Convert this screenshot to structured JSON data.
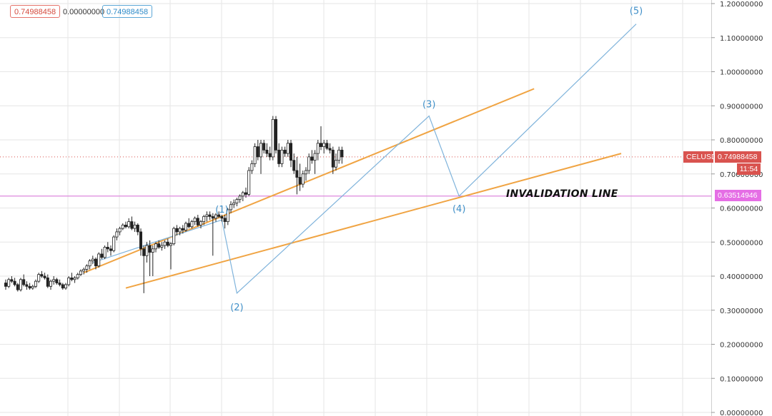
{
  "chart_data": {
    "type": "candlestick",
    "symbol": "CELUSD",
    "header": {
      "open_value": "0.74988458",
      "change_value": "0.00000000",
      "last_value": "0.74988458"
    },
    "last_price": 0.74988458,
    "last_price_label": "0.74988458",
    "countdown": "11:54",
    "invalidation_price": 0.63514946,
    "invalidation_price_label": "0.63514946",
    "invalidation_text": "INVALIDATION LINE",
    "ylim": [
      0,
      1.2
    ],
    "y_ticks": [
      0,
      0.1,
      0.2,
      0.3,
      0.4,
      0.5,
      0.6,
      0.7,
      0.8,
      0.9,
      1.0,
      1.1,
      1.2
    ],
    "y_tick_labels": [
      "0.00000000",
      "0.10000000",
      "0.20000000",
      "0.30000000",
      "0.40000000",
      "0.50000000",
      "0.60000000",
      "0.70000000",
      "0.80000000",
      "0.90000000",
      "1.00000000",
      "1.10000000",
      "1.20000000"
    ],
    "bars_total": 180,
    "candles": [
      [
        0.38,
        0.39,
        0.36,
        0.37
      ],
      [
        0.37,
        0.395,
        0.365,
        0.39
      ],
      [
        0.39,
        0.4,
        0.38,
        0.385
      ],
      [
        0.385,
        0.395,
        0.37,
        0.375
      ],
      [
        0.375,
        0.38,
        0.355,
        0.36
      ],
      [
        0.36,
        0.395,
        0.355,
        0.39
      ],
      [
        0.39,
        0.405,
        0.37,
        0.375
      ],
      [
        0.375,
        0.385,
        0.36,
        0.37
      ],
      [
        0.37,
        0.38,
        0.36,
        0.365
      ],
      [
        0.365,
        0.375,
        0.36,
        0.37
      ],
      [
        0.37,
        0.39,
        0.365,
        0.385
      ],
      [
        0.385,
        0.41,
        0.38,
        0.405
      ],
      [
        0.405,
        0.415,
        0.395,
        0.4
      ],
      [
        0.4,
        0.41,
        0.39,
        0.395
      ],
      [
        0.395,
        0.405,
        0.365,
        0.37
      ],
      [
        0.37,
        0.39,
        0.36,
        0.385
      ],
      [
        0.385,
        0.4,
        0.375,
        0.39
      ],
      [
        0.39,
        0.395,
        0.375,
        0.38
      ],
      [
        0.38,
        0.39,
        0.37,
        0.375
      ],
      [
        0.375,
        0.38,
        0.36,
        0.365
      ],
      [
        0.365,
        0.38,
        0.36,
        0.375
      ],
      [
        0.375,
        0.4,
        0.37,
        0.395
      ],
      [
        0.395,
        0.41,
        0.385,
        0.39
      ],
      [
        0.39,
        0.4,
        0.38,
        0.395
      ],
      [
        0.395,
        0.41,
        0.39,
        0.405
      ],
      [
        0.405,
        0.42,
        0.4,
        0.415
      ],
      [
        0.415,
        0.425,
        0.405,
        0.42
      ],
      [
        0.42,
        0.435,
        0.41,
        0.43
      ],
      [
        0.43,
        0.45,
        0.42,
        0.445
      ],
      [
        0.445,
        0.46,
        0.435,
        0.45
      ],
      [
        0.45,
        0.455,
        0.42,
        0.43
      ],
      [
        0.43,
        0.47,
        0.425,
        0.465
      ],
      [
        0.465,
        0.48,
        0.45,
        0.455
      ],
      [
        0.455,
        0.49,
        0.45,
        0.485
      ],
      [
        0.485,
        0.5,
        0.47,
        0.48
      ],
      [
        0.48,
        0.49,
        0.46,
        0.475
      ],
      [
        0.475,
        0.52,
        0.47,
        0.515
      ],
      [
        0.515,
        0.54,
        0.505,
        0.53
      ],
      [
        0.53,
        0.545,
        0.52,
        0.54
      ],
      [
        0.54,
        0.555,
        0.535,
        0.55
      ],
      [
        0.55,
        0.56,
        0.54,
        0.545
      ],
      [
        0.545,
        0.57,
        0.54,
        0.56
      ],
      [
        0.56,
        0.575,
        0.535,
        0.54
      ],
      [
        0.54,
        0.56,
        0.53,
        0.55
      ],
      [
        0.55,
        0.555,
        0.52,
        0.53
      ],
      [
        0.53,
        0.54,
        0.46,
        0.48
      ],
      [
        0.48,
        0.49,
        0.35,
        0.46
      ],
      [
        0.46,
        0.5,
        0.44,
        0.49
      ],
      [
        0.49,
        0.505,
        0.4,
        0.47
      ],
      [
        0.47,
        0.49,
        0.4,
        0.48
      ],
      [
        0.48,
        0.5,
        0.47,
        0.495
      ],
      [
        0.495,
        0.505,
        0.48,
        0.485
      ],
      [
        0.485,
        0.5,
        0.475,
        0.49
      ],
      [
        0.49,
        0.505,
        0.48,
        0.5
      ],
      [
        0.5,
        0.51,
        0.485,
        0.49
      ],
      [
        0.49,
        0.5,
        0.42,
        0.495
      ],
      [
        0.495,
        0.545,
        0.49,
        0.54
      ],
      [
        0.54,
        0.55,
        0.52,
        0.53
      ],
      [
        0.53,
        0.545,
        0.52,
        0.54
      ],
      [
        0.54,
        0.55,
        0.525,
        0.535
      ],
      [
        0.535,
        0.56,
        0.53,
        0.555
      ],
      [
        0.555,
        0.57,
        0.54,
        0.545
      ],
      [
        0.545,
        0.565,
        0.54,
        0.56
      ],
      [
        0.56,
        0.575,
        0.55,
        0.57
      ],
      [
        0.57,
        0.58,
        0.545,
        0.55
      ],
      [
        0.55,
        0.565,
        0.54,
        0.56
      ],
      [
        0.56,
        0.58,
        0.55,
        0.575
      ],
      [
        0.575,
        0.59,
        0.56,
        0.58
      ],
      [
        0.58,
        0.59,
        0.565,
        0.575
      ],
      [
        0.575,
        0.585,
        0.46,
        0.57
      ],
      [
        0.57,
        0.585,
        0.56,
        0.58
      ],
      [
        0.58,
        0.59,
        0.57,
        0.575
      ],
      [
        0.575,
        0.58,
        0.56,
        0.57
      ],
      [
        0.57,
        0.58,
        0.54,
        0.56
      ],
      [
        0.56,
        0.6,
        0.55,
        0.595
      ],
      [
        0.595,
        0.62,
        0.585,
        0.61
      ],
      [
        0.61,
        0.625,
        0.6,
        0.615
      ],
      [
        0.615,
        0.63,
        0.605,
        0.625
      ],
      [
        0.625,
        0.64,
        0.615,
        0.635
      ],
      [
        0.635,
        0.65,
        0.62,
        0.645
      ],
      [
        0.645,
        0.66,
        0.63,
        0.64
      ],
      [
        0.64,
        0.72,
        0.635,
        0.71
      ],
      [
        0.71,
        0.74,
        0.7,
        0.73
      ],
      [
        0.73,
        0.79,
        0.72,
        0.78
      ],
      [
        0.78,
        0.8,
        0.74,
        0.75
      ],
      [
        0.75,
        0.8,
        0.7,
        0.79
      ],
      [
        0.79,
        0.8,
        0.76,
        0.77
      ],
      [
        0.77,
        0.79,
        0.75,
        0.76
      ],
      [
        0.76,
        0.78,
        0.74,
        0.75
      ],
      [
        0.75,
        0.87,
        0.74,
        0.86
      ],
      [
        0.86,
        0.87,
        0.76,
        0.77
      ],
      [
        0.77,
        0.79,
        0.72,
        0.73
      ],
      [
        0.73,
        0.78,
        0.72,
        0.77
      ],
      [
        0.77,
        0.78,
        0.75,
        0.76
      ],
      [
        0.76,
        0.8,
        0.75,
        0.79
      ],
      [
        0.79,
        0.8,
        0.72,
        0.74
      ],
      [
        0.74,
        0.76,
        0.7,
        0.71
      ],
      [
        0.71,
        0.75,
        0.64,
        0.69
      ],
      [
        0.69,
        0.73,
        0.65,
        0.67
      ],
      [
        0.67,
        0.71,
        0.66,
        0.7
      ],
      [
        0.7,
        0.72,
        0.68,
        0.71
      ],
      [
        0.71,
        0.76,
        0.7,
        0.75
      ],
      [
        0.75,
        0.77,
        0.73,
        0.74
      ],
      [
        0.74,
        0.77,
        0.7,
        0.76
      ],
      [
        0.76,
        0.8,
        0.74,
        0.79
      ],
      [
        0.79,
        0.84,
        0.77,
        0.78
      ],
      [
        0.78,
        0.8,
        0.76,
        0.79
      ],
      [
        0.79,
        0.8,
        0.77,
        0.775
      ],
      [
        0.775,
        0.79,
        0.76,
        0.77
      ],
      [
        0.77,
        0.78,
        0.7,
        0.72
      ],
      [
        0.72,
        0.76,
        0.71,
        0.74
      ],
      [
        0.74,
        0.78,
        0.73,
        0.77
      ],
      [
        0.77,
        0.78,
        0.73,
        0.75
      ]
    ],
    "elliott_wave": {
      "points": [
        {
          "bar": 29,
          "price": 0.44,
          "label": ""
        },
        {
          "bar": 72,
          "price": 0.565,
          "label": "(1)"
        },
        {
          "bar": 77,
          "price": 0.35,
          "label": "(2)"
        },
        {
          "bar": 141,
          "price": 0.87,
          "label": "(3)"
        },
        {
          "bar": 151,
          "price": 0.635,
          "label": "(4)"
        },
        {
          "bar": 210,
          "price": 1.14,
          "label": "(5)"
        }
      ]
    },
    "channel_upper": {
      "start_bar": 26,
      "start_price": 0.41,
      "end_bar": 176,
      "end_price": 0.95
    },
    "channel_lower": {
      "start_bar": 40,
      "start_price": 0.365,
      "end_bar": 205,
      "end_price": 0.76
    },
    "colors": {
      "up": "#26a69a",
      "down": "#ef5350",
      "candle": "#222222",
      "channel": "#f0a443",
      "wave": "#7fb3db",
      "invalidation": "#dd88dd",
      "price_line": "#d9534f",
      "grid": "#e6e6e6"
    }
  }
}
